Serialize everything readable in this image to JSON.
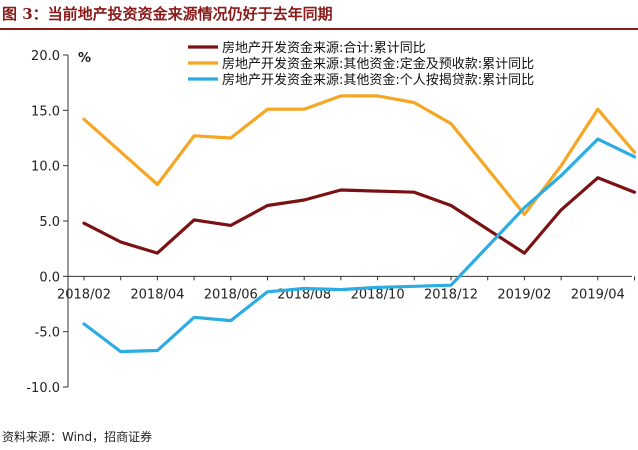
{
  "title": "图 3：当前地产投资资金来源情况仍好于去年同期",
  "source": "资料来源：Wind，招商证券",
  "chart_data": {
    "type": "line",
    "unit_label": "%",
    "ylim": [
      -10,
      20
    ],
    "y_ticks": [
      "20.0",
      "15.0",
      "10.0",
      "5.0",
      "0.0",
      "-5.0",
      "-10.0"
    ],
    "y_tick_values": [
      20,
      15,
      10,
      5,
      0,
      -5,
      -10
    ],
    "x": [
      "2018/02",
      "2018/03",
      "2018/04",
      "2018/05",
      "2018/06",
      "2018/07",
      "2018/08",
      "2018/09",
      "2018/10",
      "2018/11",
      "2018/12",
      "2019/01",
      "2019/02",
      "2019/03",
      "2019/04",
      "2019/05"
    ],
    "x_ticks": [
      "2018/02",
      "2018/04",
      "2018/06",
      "2018/08",
      "2018/10",
      "2018/12",
      "2019/02",
      "2019/04"
    ],
    "grid": false,
    "legend_position": "top",
    "series": [
      {
        "name": "房地产开发资金来源:合计:累计同比",
        "color": "#7b1113",
        "values": [
          4.8,
          3.1,
          2.1,
          5.1,
          4.6,
          6.4,
          6.9,
          7.8,
          7.7,
          7.6,
          6.4,
          null,
          2.1,
          6.0,
          8.9,
          7.6
        ]
      },
      {
        "name": "房地产开发资金来源:其他资金:定金及预收款:累计同比",
        "color": "#f5a623",
        "values": [
          14.2,
          null,
          8.3,
          12.7,
          12.5,
          15.1,
          15.1,
          16.3,
          16.3,
          15.7,
          13.8,
          null,
          5.6,
          10.0,
          15.1,
          11.2
        ]
      },
      {
        "name": "房地产开发资金来源:其他资金:个人按揭贷款:累计同比",
        "color": "#2bace2",
        "values": [
          -4.3,
          -6.8,
          -6.7,
          -3.7,
          -4.0,
          -1.4,
          -1.1,
          -1.2,
          -1.0,
          -0.9,
          -0.8,
          null,
          6.2,
          9.1,
          12.4,
          10.8
        ]
      }
    ]
  }
}
